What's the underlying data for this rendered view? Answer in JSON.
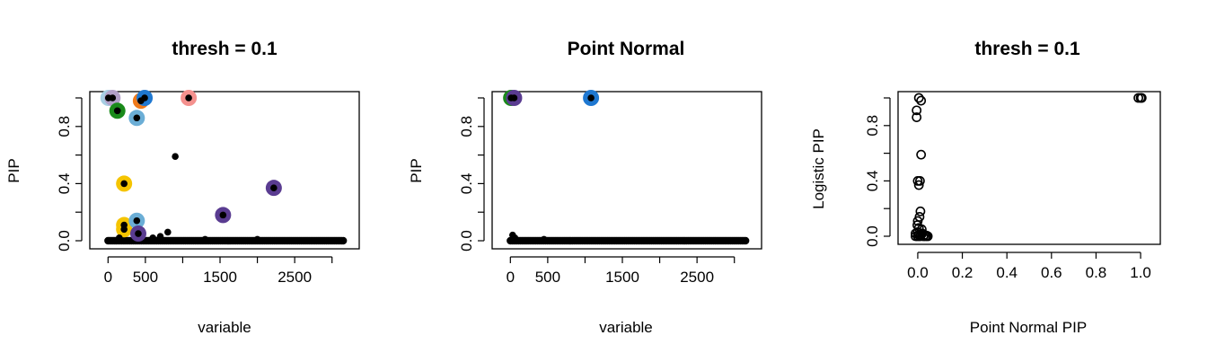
{
  "chart_data": [
    {
      "type": "scatter",
      "title": "thresh =  0.1",
      "xlabel": "variable",
      "ylabel": "PIP",
      "xlim": [
        -100,
        3220
      ],
      "ylim": [
        0,
        1
      ],
      "xticks": [
        0,
        500,
        1500,
        2500
      ],
      "yticks": [
        0.0,
        0.4,
        0.8
      ],
      "minor_xticks": [
        1000,
        2000,
        3000
      ],
      "minor_yticks": [
        0.2,
        0.6,
        1.0
      ],
      "highlighted": [
        {
          "x": 5,
          "y": 1.0,
          "color": "#a6cee3"
        },
        {
          "x": 60,
          "y": 1.0,
          "color": "#b2a0c8"
        },
        {
          "x": 125,
          "y": 0.91,
          "color": "#1a8a1a"
        },
        {
          "x": 215,
          "y": 0.4,
          "color": "#f5c400"
        },
        {
          "x": 215,
          "y": 0.11,
          "color": "#f5c400"
        },
        {
          "x": 215,
          "y": 0.08,
          "color": "#f5c400"
        },
        {
          "x": 385,
          "y": 0.86,
          "color": "#6baed6"
        },
        {
          "x": 385,
          "y": 0.14,
          "color": "#6baed6"
        },
        {
          "x": 405,
          "y": 0.05,
          "color": "#5a3c91"
        },
        {
          "x": 440,
          "y": 0.98,
          "color": "#f07a1a"
        },
        {
          "x": 490,
          "y": 1.0,
          "color": "#1f78d1"
        },
        {
          "x": 1080,
          "y": 1.0,
          "color": "#f4918e"
        },
        {
          "x": 1540,
          "y": 0.18,
          "color": "#5a3c91"
        },
        {
          "x": 2220,
          "y": 0.37,
          "color": "#5a3c91"
        }
      ],
      "points": [
        {
          "x": 5,
          "y": 1.0
        },
        {
          "x": 60,
          "y": 1.0
        },
        {
          "x": 125,
          "y": 0.91
        },
        {
          "x": 215,
          "y": 0.4
        },
        {
          "x": 215,
          "y": 0.11
        },
        {
          "x": 215,
          "y": 0.08
        },
        {
          "x": 385,
          "y": 0.86
        },
        {
          "x": 385,
          "y": 0.14
        },
        {
          "x": 405,
          "y": 0.05
        },
        {
          "x": 440,
          "y": 0.98
        },
        {
          "x": 490,
          "y": 1.0
        },
        {
          "x": 1080,
          "y": 1.0
        },
        {
          "x": 900,
          "y": 0.59
        },
        {
          "x": 800,
          "y": 0.06
        },
        {
          "x": 1540,
          "y": 0.18
        },
        {
          "x": 2220,
          "y": 0.37
        },
        {
          "x": 150,
          "y": 0.02
        },
        {
          "x": 600,
          "y": 0.02
        },
        {
          "x": 700,
          "y": 0.03
        },
        {
          "x": 1300,
          "y": 0.01
        },
        {
          "x": 2000,
          "y": 0.01
        }
      ],
      "baseline": {
        "x_from": 0,
        "x_to": 3150,
        "y": 0.0
      }
    },
    {
      "type": "scatter",
      "title": "Point Normal",
      "xlabel": "variable",
      "ylabel": "PIP",
      "xlim": [
        -100,
        3220
      ],
      "ylim": [
        0,
        1
      ],
      "xticks": [
        0,
        500,
        1500,
        2500
      ],
      "yticks": [
        0.0,
        0.4,
        0.8
      ],
      "minor_xticks": [
        1000,
        2000,
        3000
      ],
      "minor_yticks": [
        0.2,
        0.6,
        1.0
      ],
      "highlighted": [
        {
          "x": 10,
          "y": 1.0,
          "color": "#1a8a1a"
        },
        {
          "x": 50,
          "y": 1.0,
          "color": "#5a3c91"
        },
        {
          "x": 1080,
          "y": 1.0,
          "color": "#1f78d1"
        }
      ],
      "points": [
        {
          "x": 10,
          "y": 1.0
        },
        {
          "x": 50,
          "y": 1.0
        },
        {
          "x": 1080,
          "y": 1.0
        },
        {
          "x": 30,
          "y": 0.04
        },
        {
          "x": 60,
          "y": 0.02
        },
        {
          "x": 450,
          "y": 0.01
        }
      ],
      "baseline": {
        "x_from": 0,
        "x_to": 3150,
        "y": 0.0
      }
    },
    {
      "type": "scatter",
      "title": "thresh =  0.1",
      "xlabel": "Point Normal PIP",
      "ylabel": "Logistic PIP",
      "xlim": [
        -0.04,
        1.04
      ],
      "ylim": [
        0,
        1
      ],
      "xticks": [
        0.0,
        0.2,
        0.4,
        0.6,
        0.8,
        1.0
      ],
      "yticks": [
        0.0,
        0.4,
        0.8
      ],
      "minor_yticks": [
        0.2,
        0.6,
        1.0
      ],
      "marker": "open-circle",
      "points": [
        {
          "x": 0.99,
          "y": 1.0
        },
        {
          "x": 1.0,
          "y": 1.0
        },
        {
          "x": 1.005,
          "y": 1.0
        },
        {
          "x": 0.005,
          "y": 1.0
        },
        {
          "x": 0.015,
          "y": 0.98
        },
        {
          "x": -0.005,
          "y": 0.91
        },
        {
          "x": -0.005,
          "y": 0.86
        },
        {
          "x": 0.015,
          "y": 0.59
        },
        {
          "x": 0.0,
          "y": 0.4
        },
        {
          "x": 0.01,
          "y": 0.4
        },
        {
          "x": 0.005,
          "y": 0.37
        },
        {
          "x": 0.012,
          "y": 0.18
        },
        {
          "x": 0.008,
          "y": 0.14
        },
        {
          "x": 0.0,
          "y": 0.11
        },
        {
          "x": -0.002,
          "y": 0.08
        },
        {
          "x": 0.005,
          "y": 0.06
        },
        {
          "x": 0.018,
          "y": 0.05
        },
        {
          "x": 0.0,
          "y": 0.03
        },
        {
          "x": -0.01,
          "y": 0.02
        },
        {
          "x": 0.02,
          "y": 0.02
        },
        {
          "x": 0.03,
          "y": 0.01
        },
        {
          "x": 0.04,
          "y": 0.005
        },
        {
          "x": -0.01,
          "y": 0.0
        },
        {
          "x": 0.0,
          "y": 0.0
        },
        {
          "x": 0.01,
          "y": 0.0
        },
        {
          "x": 0.025,
          "y": 0.0
        },
        {
          "x": 0.035,
          "y": 0.0
        },
        {
          "x": 0.045,
          "y": 0.0
        },
        {
          "x": 0.005,
          "y": 0.01
        },
        {
          "x": 0.015,
          "y": 0.01
        }
      ]
    }
  ]
}
